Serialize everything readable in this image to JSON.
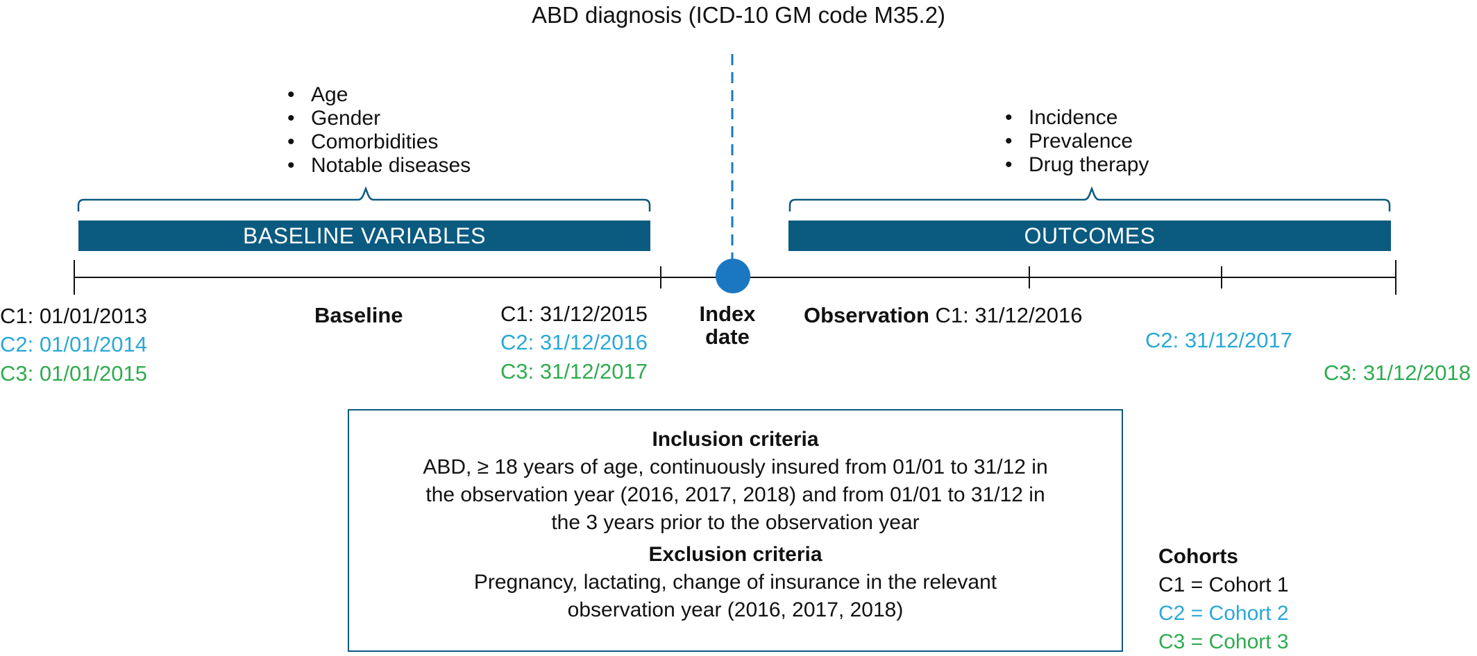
{
  "title": "ABD diagnosis (ICD-10 GM code M35.2)",
  "baseline_bullets": [
    "Age",
    "Gender",
    "Comorbidities",
    "Notable diseases"
  ],
  "outcome_bullets": [
    "Incidence",
    "Prevalence",
    "Drug therapy"
  ],
  "bars": {
    "baseline": "BASELINE VARIABLES",
    "outcomes": "OUTCOMES"
  },
  "timeline": {
    "baseline_label": "Baseline",
    "index_label_line1": "Index",
    "index_label_line2": "date",
    "observation_label": "Observation",
    "start_dates": [
      "C1: 01/01/2013",
      "C2: 01/01/2014",
      "C3: 01/01/2015"
    ],
    "baseline_end_dates": [
      "C1: 31/12/2015",
      "C2: 31/12/2016",
      "C3: 31/12/2017"
    ],
    "observation_end_c1": "C1: 31/12/2016",
    "observation_end_c2": "C2: 31/12/2017",
    "observation_end_c3": "C3: 31/12/2018"
  },
  "criteria": {
    "inclusion_heading": "Inclusion criteria",
    "inclusion_line1": "ABD, ≥ 18 years of age, continuously insured from 01/01 to 31/12 in",
    "inclusion_line2": "the observation year (2016, 2017, 2018) and from 01/01 to 31/12 in",
    "inclusion_line3": "the 3 years prior to the observation year",
    "exclusion_heading": "Exclusion criteria",
    "exclusion_line1": "Pregnancy, lactating, change of insurance in the relevant",
    "exclusion_line2": "observation year (2016, 2017, 2018)"
  },
  "legend": {
    "heading": "Cohorts",
    "items": [
      "C1 = Cohort 1",
      "C2 = Cohort 2",
      "C3 = Cohort 3"
    ]
  },
  "colors": {
    "bar": "#0b5a80",
    "index_marker": "#1a78c2",
    "cohort1": "#111111",
    "cohort2": "#29a8d8",
    "cohort3": "#2fab4f"
  }
}
